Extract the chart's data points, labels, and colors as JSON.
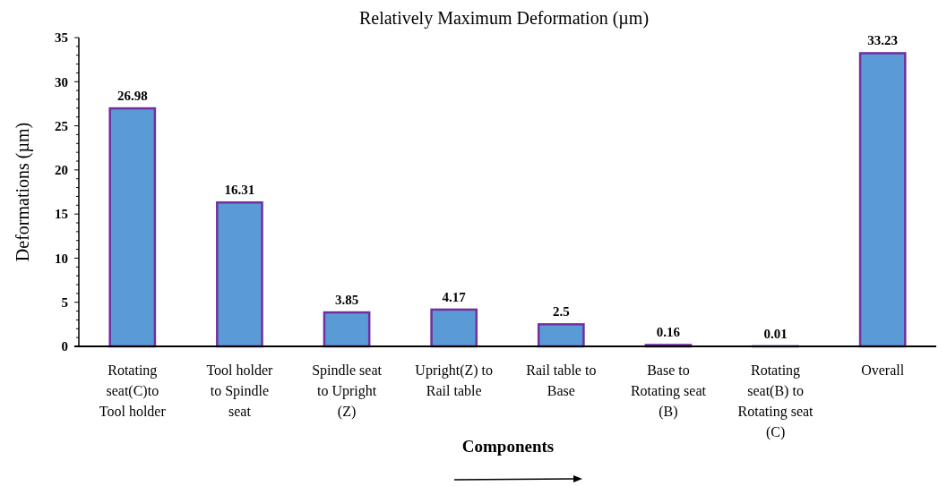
{
  "chart_data": {
    "type": "bar",
    "title": "Relatively Maximum Deformation  (µm)",
    "xlabel": "Components",
    "ylabel": "Deformations (µm)",
    "categories": [
      "Rotating seat(C)to Tool holder",
      "Tool holder to Spindle seat",
      "Spindle seat to Upright (Z)",
      "Upright(Z) to Rail table",
      "Rail table to Base",
      "Base to Rotating seat (B)",
      "Rotating seat(B) to Rotating seat (C)",
      "Overall"
    ],
    "series": [
      {
        "color": "#5b9bd5",
        "values": [
          26.98,
          16.31,
          3.85,
          4.17,
          2.5,
          0.16,
          0.01,
          33.23
        ]
      }
    ],
    "ylim": [
      0,
      35
    ],
    "yticks": [
      0,
      {
        "value": 1,
        "label": null
      },
      {
        "value": 2,
        "label": null
      },
      {
        "value": 3,
        "label": null
      },
      {
        "value": 4,
        "label": null
      },
      5,
      {
        "value": 6,
        "label": null
      },
      {
        "value": 7,
        "label": null
      },
      {
        "value": 8,
        "label": null
      },
      {
        "value": 9,
        "label": null
      },
      10,
      {
        "value": 11,
        "label": null
      },
      {
        "value": 12,
        "label": null
      },
      {
        "value": 13,
        "label": null
      },
      {
        "value": 14,
        "label": null
      },
      15,
      {
        "value": 16,
        "label": null
      },
      {
        "value": 17,
        "label": null
      },
      {
        "value": 18,
        "label": null
      },
      {
        "value": 19,
        "label": null
      },
      20,
      {
        "value": 21,
        "label": null
      },
      {
        "value": 22,
        "label": null
      },
      {
        "value": 23,
        "label": null
      },
      {
        "value": 24,
        "label": null
      },
      25,
      {
        "value": 26,
        "label": null
      },
      {
        "value": 27,
        "label": null
      },
      {
        "value": 28,
        "label": null
      },
      {
        "value": 29,
        "label": null
      },
      30,
      {
        "value": 31,
        "label": null
      },
      {
        "value": 32,
        "label": null
      },
      {
        "value": 33,
        "label": null
      },
      {
        "value": 34,
        "label": null
      },
      35
    ],
    "data_labels": true
  }
}
